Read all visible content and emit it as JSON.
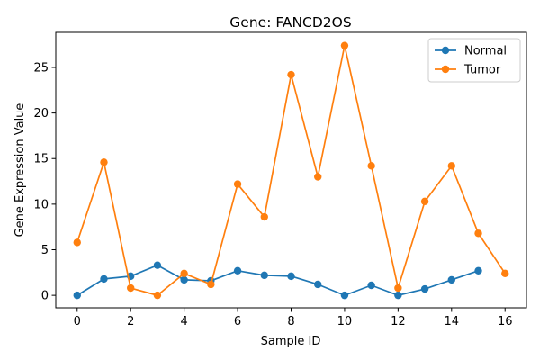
{
  "chart_data": {
    "type": "line",
    "title": "Gene: FANCD2OS",
    "xlabel": "Sample ID",
    "ylabel": "Gene Expression Value",
    "xlim": [
      -0.8,
      16.8
    ],
    "ylim": [
      -1.37,
      28.85
    ],
    "xticks": [
      0,
      2,
      4,
      6,
      8,
      10,
      12,
      14,
      16
    ],
    "yticks": [
      0,
      5,
      10,
      15,
      20,
      25
    ],
    "legend_position": "top-right",
    "series": [
      {
        "name": "Normal",
        "color": "#1f77b4",
        "x": [
          0,
          1,
          2,
          3,
          4,
          5,
          6,
          7,
          8,
          9,
          10,
          11,
          12,
          13,
          14,
          15
        ],
        "values": [
          0.0,
          1.8,
          2.1,
          3.3,
          1.7,
          1.6,
          2.7,
          2.2,
          2.1,
          1.2,
          0.0,
          1.1,
          0.0,
          0.7,
          1.7,
          2.7
        ]
      },
      {
        "name": "Tumor",
        "color": "#ff7f0e",
        "x": [
          0,
          1,
          2,
          3,
          4,
          5,
          6,
          7,
          8,
          9,
          10,
          11,
          12,
          13,
          14,
          15,
          16
        ],
        "values": [
          5.8,
          14.6,
          0.8,
          0.0,
          2.4,
          1.2,
          12.2,
          8.6,
          24.2,
          13.0,
          27.4,
          14.2,
          0.8,
          10.3,
          14.2,
          6.8,
          2.4
        ]
      }
    ]
  }
}
